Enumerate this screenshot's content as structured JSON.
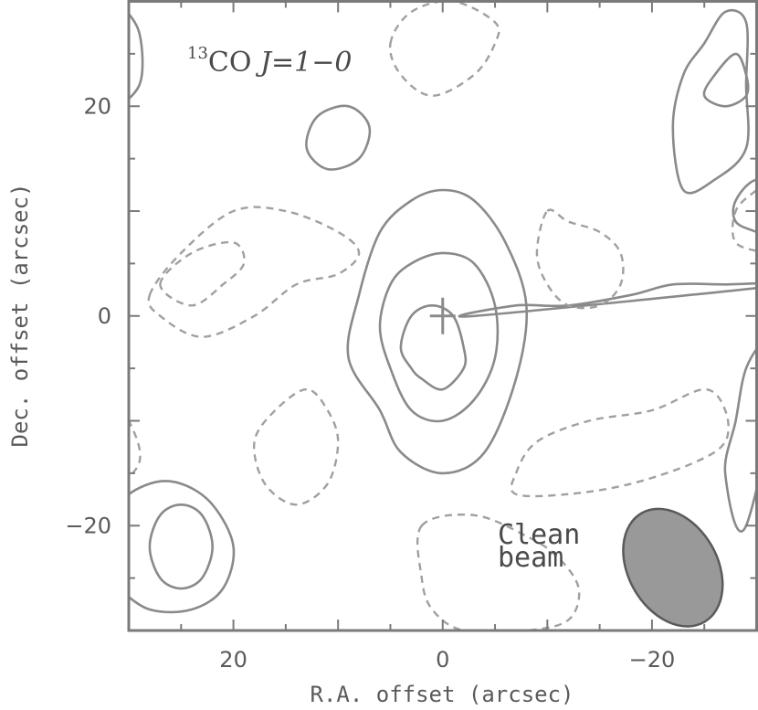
{
  "chart_data": {
    "type": "contour",
    "title_prefix": "13",
    "title_main": "CO ",
    "title_transition": "J=1−0",
    "xlabel": "R.A. offset (arcsec)",
    "ylabel": "Dec. offset (arcsec)",
    "xlim": [
      30,
      -30
    ],
    "ylim": [
      -30,
      30
    ],
    "xticks": [
      20,
      0,
      -20
    ],
    "xtick_labels": [
      "20",
      "0",
      "−20"
    ],
    "yticks": [
      20,
      0,
      -20
    ],
    "ytick_labels": [
      "20",
      "0",
      "−20"
    ],
    "grid": false,
    "beam_label_line1": "Clean",
    "beam_label_line2": "beam",
    "beam": {
      "x": -22,
      "y": -24,
      "major": 12,
      "minor": 8.5,
      "pa_deg": 30,
      "color": "#999999"
    },
    "marker": {
      "x": 0,
      "y": 0,
      "symbol": "+"
    },
    "colors": {
      "positive": "#8a8a8a",
      "negative": "#a0a0a0",
      "frame": "#7a7a7a"
    },
    "positive_contours": [
      [
        [
          8,
          2
        ],
        [
          6,
          8
        ],
        [
          3,
          11
        ],
        [
          0,
          12
        ],
        [
          -3,
          11
        ],
        [
          -6,
          7
        ],
        [
          -8,
          1
        ],
        [
          -7,
          -6
        ],
        [
          -4,
          -13
        ],
        [
          0,
          -15
        ],
        [
          4,
          -13
        ],
        [
          6,
          -9
        ],
        [
          9,
          -4
        ]
      ],
      [
        [
          6,
          -1
        ],
        [
          5,
          3
        ],
        [
          3,
          5
        ],
        [
          0,
          6
        ],
        [
          -3,
          5
        ],
        [
          -5,
          1
        ],
        [
          -5,
          -4
        ],
        [
          -3,
          -8
        ],
        [
          0,
          -10
        ],
        [
          3,
          -9
        ],
        [
          5,
          -5
        ]
      ],
      [
        [
          4,
          -3
        ],
        [
          3,
          0
        ],
        [
          1,
          1
        ],
        [
          -1,
          0
        ],
        [
          -2,
          -3
        ],
        [
          -2,
          -5
        ],
        [
          0,
          -7
        ],
        [
          2,
          -6
        ],
        [
          3,
          -5
        ]
      ],
      [
        [
          13,
          16
        ],
        [
          12,
          19
        ],
        [
          9,
          20
        ],
        [
          7,
          18
        ],
        [
          8,
          15
        ],
        [
          11,
          14
        ]
      ],
      [
        [
          28,
          -22
        ],
        [
          27,
          -19
        ],
        [
          25,
          -18
        ],
        [
          23,
          -19
        ],
        [
          22,
          -22
        ],
        [
          23,
          -25
        ],
        [
          25,
          -26
        ],
        [
          27,
          -25
        ]
      ],
      [
        [
          32,
          -22
        ],
        [
          31,
          -18
        ],
        [
          28,
          -16
        ],
        [
          25,
          -16
        ],
        [
          22,
          -18
        ],
        [
          20,
          -22
        ],
        [
          21,
          -26
        ],
        [
          24,
          -28
        ],
        [
          28,
          -28
        ],
        [
          31,
          -26
        ]
      ],
      [
        [
          33,
          25
        ],
        [
          32,
          20
        ],
        [
          29,
          22
        ],
        [
          29,
          27
        ],
        [
          31,
          30
        ]
      ],
      [
        [
          -25,
          21
        ],
        [
          -26,
          23
        ],
        [
          -28,
          25
        ],
        [
          -29,
          23
        ],
        [
          -29,
          21
        ],
        [
          -27,
          20
        ]
      ],
      [
        [
          -22,
          18
        ],
        [
          -23,
          23
        ],
        [
          -25,
          26
        ],
        [
          -27,
          29
        ],
        [
          -29,
          28
        ],
        [
          -29,
          22
        ],
        [
          -29,
          16
        ],
        [
          -26,
          13
        ],
        [
          -23,
          12
        ]
      ],
      [
        [
          -33,
          12
        ],
        [
          -30,
          13
        ],
        [
          -28,
          11
        ],
        [
          -28,
          9
        ],
        [
          -30,
          8
        ],
        [
          -33,
          7
        ]
      ],
      [
        [
          -3,
          0
        ],
        [
          -7,
          1
        ],
        [
          -12,
          1
        ],
        [
          -18,
          2
        ],
        [
          -22,
          3
        ],
        [
          -27,
          3
        ],
        [
          -33,
          3
        ]
      ],
      [
        [
          -33,
          -1
        ],
        [
          -31,
          -2
        ],
        [
          -29,
          -5
        ],
        [
          -28,
          -10
        ],
        [
          -27,
          -15
        ],
        [
          -29,
          -20
        ]
      ]
    ],
    "negative_contours": [
      [
        [
          28,
          2
        ],
        [
          25,
          6
        ],
        [
          20,
          10
        ],
        [
          15,
          10
        ],
        [
          10,
          8
        ],
        [
          8,
          6
        ],
        [
          10,
          4
        ],
        [
          14,
          3
        ],
        [
          18,
          0
        ],
        [
          23,
          -2
        ],
        [
          27,
          0
        ]
      ],
      [
        [
          27,
          3
        ],
        [
          24,
          6
        ],
        [
          20,
          7
        ],
        [
          19,
          5
        ],
        [
          21,
          3
        ],
        [
          24,
          1
        ]
      ],
      [
        [
          13,
          -7
        ],
        [
          16,
          -9
        ],
        [
          18,
          -12
        ],
        [
          17,
          -16
        ],
        [
          14,
          -18
        ],
        [
          11,
          -16
        ],
        [
          10,
          -12
        ],
        [
          11,
          -9
        ]
      ],
      [
        [
          5,
          26
        ],
        [
          3,
          29
        ],
        [
          -1,
          30
        ],
        [
          -5,
          28
        ],
        [
          -5,
          26
        ],
        [
          -3,
          23
        ],
        [
          1,
          21
        ],
        [
          4,
          23
        ]
      ],
      [
        [
          -10,
          10
        ],
        [
          -12,
          9
        ],
        [
          -15,
          8
        ],
        [
          -17,
          6
        ],
        [
          -17,
          3
        ],
        [
          -15,
          1
        ],
        [
          -12,
          1
        ],
        [
          -10,
          3
        ],
        [
          -9,
          6
        ]
      ],
      [
        [
          -7,
          -15
        ],
        [
          -9,
          -12
        ],
        [
          -14,
          -10
        ],
        [
          -20,
          -9
        ],
        [
          -25,
          -7
        ],
        [
          -27,
          -9
        ],
        [
          -27,
          -12
        ],
        [
          -24,
          -14
        ],
        [
          -18,
          -16
        ],
        [
          -12,
          -17
        ],
        [
          -7,
          -17
        ]
      ],
      [
        [
          2,
          -20
        ],
        [
          -3,
          -19
        ],
        [
          -8,
          -21
        ],
        [
          -11,
          -23
        ],
        [
          -13,
          -26
        ],
        [
          -12,
          -29
        ],
        [
          -8,
          -30
        ],
        [
          -2,
          -30
        ],
        [
          1,
          -28
        ],
        [
          2,
          -25
        ]
      ],
      [
        [
          33,
          -6
        ],
        [
          30,
          -10
        ],
        [
          29,
          -14
        ],
        [
          32,
          -17
        ]
      ],
      [
        [
          -33,
          14
        ],
        [
          -30,
          12
        ],
        [
          -28,
          10
        ],
        [
          -28,
          7
        ],
        [
          -31,
          6
        ]
      ]
    ]
  }
}
